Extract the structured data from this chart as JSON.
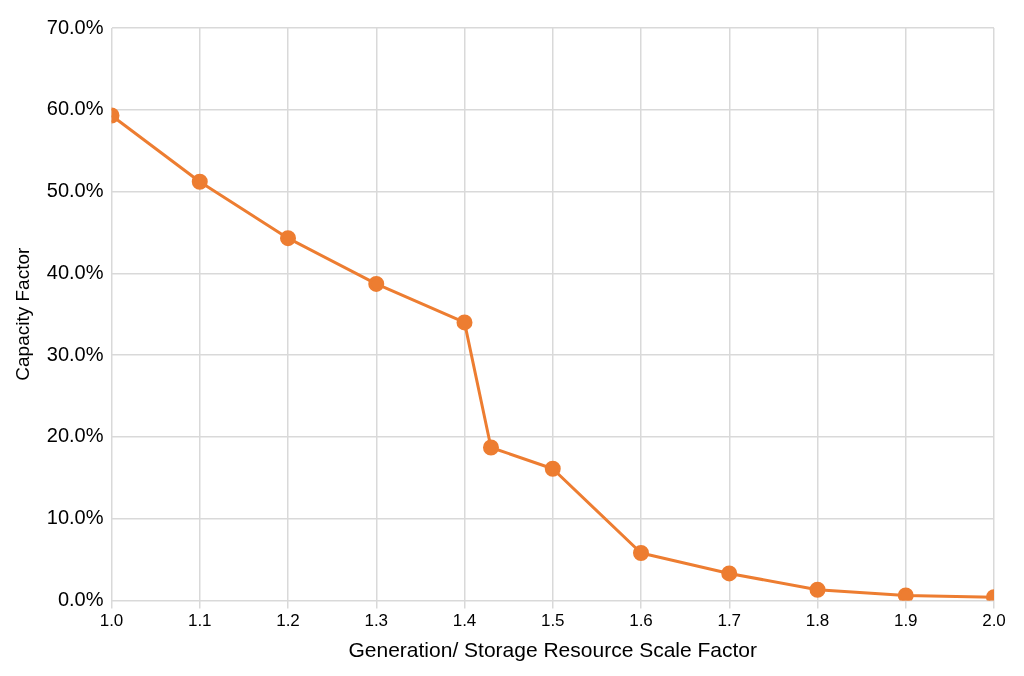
{
  "chart_data": {
    "type": "line",
    "xlabel": "Generation/ Storage Resource Scale Factor",
    "ylabel": "Capacity Factor",
    "x": [
      1.0,
      1.1,
      1.2,
      1.3,
      1.4,
      1.43,
      1.5,
      1.6,
      1.7,
      1.8,
      1.9,
      2.0
    ],
    "series": [
      {
        "color": "#ed7d31",
        "values": [
          59.3,
          51.2,
          44.3,
          38.7,
          34.0,
          18.7,
          16.1,
          5.8,
          3.3,
          1.3,
          0.6,
          0.4
        ]
      }
    ],
    "xlim": [
      1.0,
      2.0
    ],
    "xticks": [
      {
        "value": 1.0,
        "label": "1.0"
      },
      {
        "value": 1.1,
        "label": "1.1"
      },
      {
        "value": 1.2,
        "label": "1.2"
      },
      {
        "value": 1.3,
        "label": "1.3"
      },
      {
        "value": 1.4,
        "label": "1.4"
      },
      {
        "value": 1.5,
        "label": "1.5"
      },
      {
        "value": 1.6,
        "label": "1.6"
      },
      {
        "value": 1.7,
        "label": "1.7"
      },
      {
        "value": 1.8,
        "label": "1.8"
      },
      {
        "value": 1.9,
        "label": "1.9"
      },
      {
        "value": 2.0,
        "label": "2.0"
      }
    ],
    "ylim": [
      0,
      70
    ],
    "yticks": [
      {
        "value": 0,
        "label": "0.0%"
      },
      {
        "value": 10,
        "label": "10.0%"
      },
      {
        "value": 20,
        "label": "20.0%"
      },
      {
        "value": 30,
        "label": "30.0%"
      },
      {
        "value": 40,
        "label": "40.0%"
      },
      {
        "value": 50,
        "label": "50.0%"
      },
      {
        "value": 60,
        "label": "60.0%"
      },
      {
        "value": 70,
        "label": "70.0%"
      }
    ],
    "grid": true,
    "marker": "circle",
    "line_style": "solid",
    "legend": false
  }
}
